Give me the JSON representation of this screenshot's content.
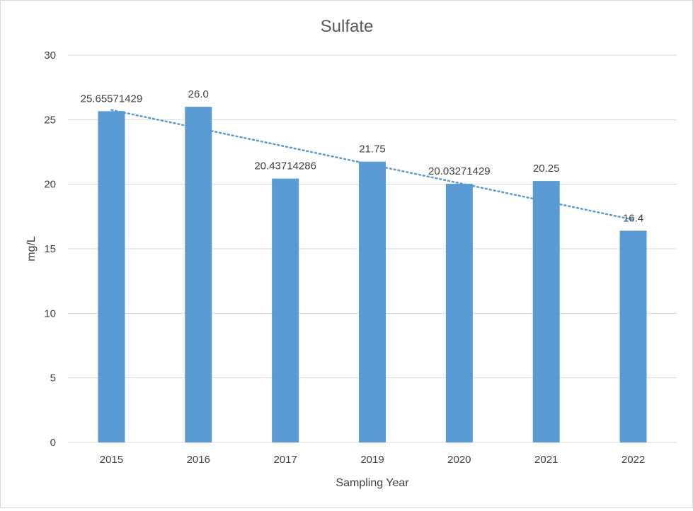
{
  "chart_data": {
    "type": "bar",
    "title": "Sulfate",
    "xlabel": "Sampling Year",
    "ylabel": "mg/L",
    "categories": [
      "2015",
      "2016",
      "2017",
      "2019",
      "2020",
      "2021",
      "2022"
    ],
    "values": [
      25.65571429,
      26.0,
      20.43714286,
      21.75,
      20.03271429,
      20.25,
      16.4
    ],
    "data_labels": [
      "25.65571429",
      "26.0",
      "20.43714286",
      "21.75",
      "20.03271429",
      "20.25",
      "16.4"
    ],
    "ylim": [
      0,
      30
    ],
    "yticks": [
      0,
      5,
      10,
      15,
      20,
      25,
      30
    ],
    "grid": true,
    "trendline": {
      "type": "linear",
      "style": "dotted"
    },
    "colors": {
      "bar": "#5b9bd5",
      "trendline": "#5b9bd5",
      "grid": "#d9d9d9"
    }
  }
}
